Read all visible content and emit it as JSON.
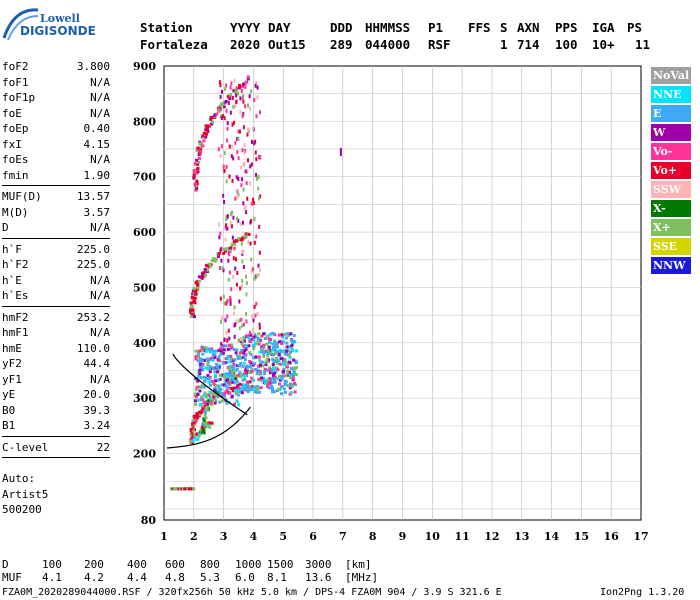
{
  "logo": {
    "line1": "Lowell",
    "line2": "DIGISONDE"
  },
  "header": {
    "row1": [
      "Station",
      "YYYY",
      "DAY",
      "DDD",
      "HHMMSS",
      "P1",
      "FFS",
      "S",
      "AXN",
      "PPS",
      "IGA",
      "PS"
    ],
    "row2": [
      "Fortaleza",
      "2020",
      "Out15",
      "289",
      "044000",
      "RSF",
      "1",
      "714",
      "100",
      "10+",
      "11"
    ]
  },
  "params": {
    "group1": [
      {
        "name": "foF2",
        "value": "3.800"
      },
      {
        "name": "foF1",
        "value": "N/A"
      },
      {
        "name": "foF1p",
        "value": "N/A"
      },
      {
        "name": "foE",
        "value": "N/A"
      },
      {
        "name": "foEp",
        "value": "0.40"
      },
      {
        "name": "fxI",
        "value": "4.15"
      },
      {
        "name": "foEs",
        "value": "N/A"
      },
      {
        "name": "fmin",
        "value": "1.90"
      }
    ],
    "group2": [
      {
        "name": "MUF(D)",
        "value": "13.57"
      },
      {
        "name": "M(D)",
        "value": "3.57"
      },
      {
        "name": "D",
        "value": "N/A"
      }
    ],
    "group3": [
      {
        "name": "h`F",
        "value": "225.0"
      },
      {
        "name": "h`F2",
        "value": "225.0"
      },
      {
        "name": "h`E",
        "value": "N/A"
      },
      {
        "name": "h`Es",
        "value": "N/A"
      }
    ],
    "group4": [
      {
        "name": "hmF2",
        "value": "253.2"
      },
      {
        "name": "hmF1",
        "value": "N/A"
      },
      {
        "name": "hmE",
        "value": "110.0"
      },
      {
        "name": "yF2",
        "value": "44.4"
      },
      {
        "name": "yF1",
        "value": "N/A"
      },
      {
        "name": "yE",
        "value": "20.0"
      },
      {
        "name": "B0",
        "value": "39.3"
      },
      {
        "name": "B1",
        "value": "3.24"
      }
    ],
    "group5": [
      {
        "name": "C-level",
        "value": "22"
      }
    ],
    "auto": [
      "Auto:",
      "Artist5",
      "500200"
    ]
  },
  "legend": [
    {
      "label": "NoVal",
      "color": "#a0a0a0"
    },
    {
      "label": "NNE",
      "color": "#00e5ff"
    },
    {
      "label": "E",
      "color": "#3fa9f5"
    },
    {
      "label": "W",
      "color": "#a000a8"
    },
    {
      "label": "Vo-",
      "color": "#ff3399"
    },
    {
      "label": "Vo+",
      "color": "#e8002a"
    },
    {
      "label": "SSW",
      "color": "#ffb3b3"
    },
    {
      "label": "X-",
      "color": "#007a00"
    },
    {
      "label": "X+",
      "color": "#7fbf5f"
    },
    {
      "label": "SSE",
      "color": "#d4d400"
    },
    {
      "label": "NNW",
      "color": "#1a1ad8"
    }
  ],
  "chart_data": {
    "type": "scatter",
    "xlim": [
      1,
      17
    ],
    "ylim": [
      80,
      900
    ],
    "x_ticks": [
      1,
      2,
      3,
      4,
      5,
      6,
      7,
      8,
      9,
      10,
      11,
      12,
      13,
      14,
      15,
      16,
      17
    ],
    "y_ticks": [
      80,
      200,
      300,
      400,
      500,
      600,
      700,
      800,
      900
    ],
    "grid": true
  },
  "footer": {
    "row_d": [
      "D",
      "100",
      "200",
      "400",
      "600",
      "800",
      "1000",
      "1500",
      "3000",
      "[km]"
    ],
    "row_muf": [
      "MUF",
      "4.1",
      "4.2",
      "4.4",
      "4.8",
      "5.3",
      "6.0",
      "8.1",
      "13.6",
      "[MHz]"
    ],
    "info": "FZA0M_2020289044000.RSF / 320fx256h 50 kHz 5.0 km / DPS-4 FZA0M 904 / 3.9 S 321.6 E",
    "version": "Ion2Png 1.3.20"
  }
}
